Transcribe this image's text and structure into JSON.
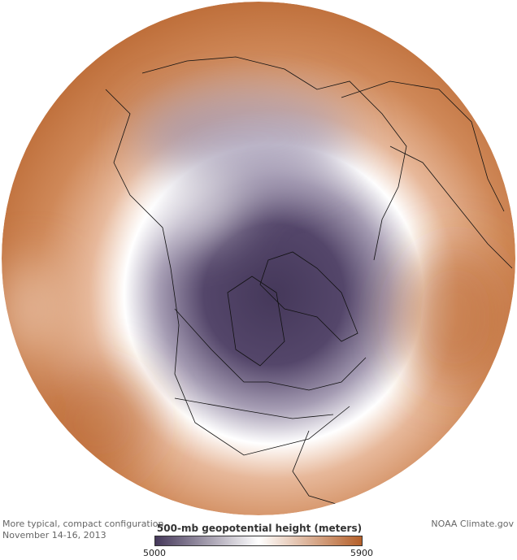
{
  "map": {
    "projection": "north polar stereographic",
    "variable": "500-mb geopotential height",
    "colors": {
      "low": "#45385a",
      "mid": "#ffffff",
      "high": "#b5602a"
    }
  },
  "caption": {
    "line1": "More typical, compact configuration",
    "line2": "November 14-16, 2013"
  },
  "credit": "NOAA Climate.gov",
  "legend": {
    "title": "500-mb geopotential height (meters)",
    "min": "5000",
    "max": "5900"
  }
}
